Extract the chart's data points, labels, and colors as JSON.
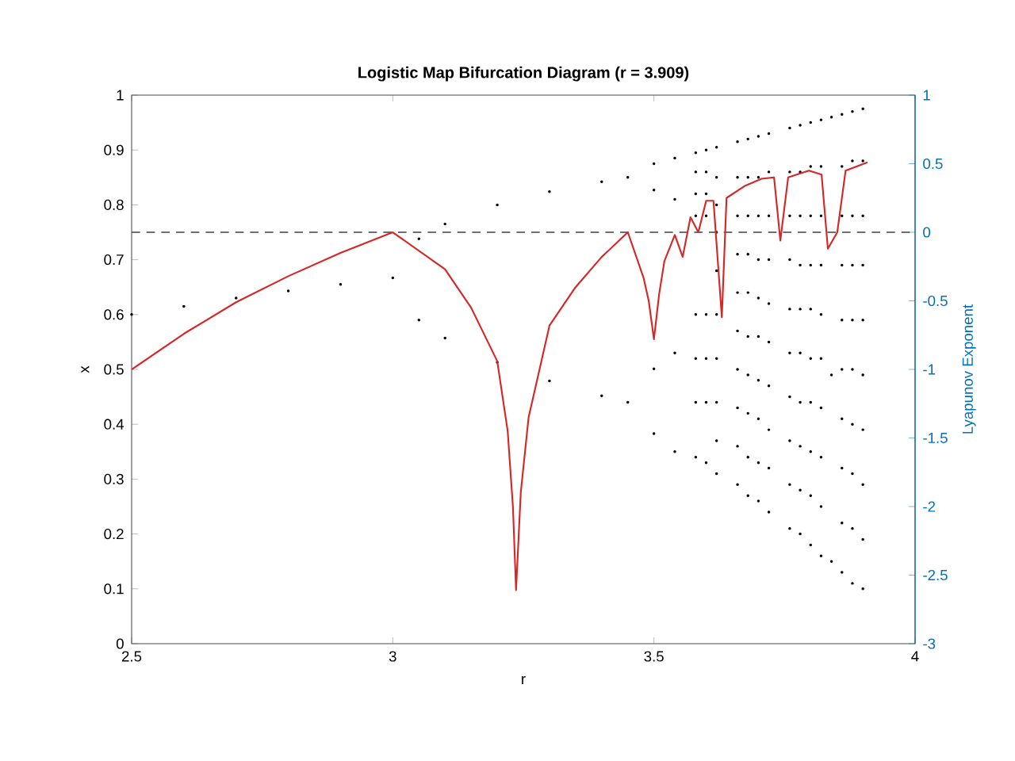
{
  "chart_data": {
    "type": "scatter",
    "title": "Logistic Map Bifurcation Diagram (r = 3.909)",
    "xlabel": "r",
    "ylabel": "x",
    "y2label": "Lyapunov Exponent",
    "xlim": [
      2.5,
      4
    ],
    "xticks": [
      2.5,
      3,
      3.5,
      4
    ],
    "ylim": [
      0,
      1
    ],
    "yticks": [
      0,
      0.1,
      0.2,
      0.3,
      0.4,
      0.5,
      0.6,
      0.7,
      0.8,
      0.9,
      1
    ],
    "y2lim": [
      -3,
      1
    ],
    "y2ticks": [
      -3,
      -2.5,
      -2,
      -1.5,
      -1,
      -0.5,
      0,
      0.5,
      1
    ],
    "ref_lines": [
      {
        "axis": "y2",
        "value": 0,
        "color": "#404040",
        "line_style": "dashed"
      }
    ],
    "series": [
      {
        "color": "#000000",
        "marker": "circle",
        "x": [
          2.5,
          2.6,
          2.7,
          2.8,
          2.9,
          3.0,
          3.05,
          3.05,
          3.1,
          3.1,
          3.2,
          3.2,
          3.3,
          3.3,
          3.4,
          3.4,
          3.45,
          3.45,
          3.5,
          3.5,
          3.5,
          3.5,
          3.54,
          3.54,
          3.54,
          3.54,
          3.58,
          3.58,
          3.58,
          3.58,
          3.58,
          3.58,
          3.58,
          3.58,
          3.6,
          3.6,
          3.6,
          3.6,
          3.6,
          3.6,
          3.6,
          3.6,
          3.62,
          3.62,
          3.62,
          3.62,
          3.62,
          3.62,
          3.62,
          3.62,
          3.62,
          3.62,
          3.66,
          3.66,
          3.66,
          3.66,
          3.66,
          3.66,
          3.66,
          3.66,
          3.66,
          3.66,
          3.68,
          3.68,
          3.68,
          3.68,
          3.68,
          3.68,
          3.68,
          3.68,
          3.68,
          3.68,
          3.7,
          3.7,
          3.7,
          3.7,
          3.7,
          3.7,
          3.7,
          3.7,
          3.7,
          3.7,
          3.72,
          3.72,
          3.72,
          3.72,
          3.72,
          3.72,
          3.72,
          3.72,
          3.72,
          3.72,
          3.76,
          3.76,
          3.76,
          3.76,
          3.76,
          3.76,
          3.76,
          3.76,
          3.76,
          3.76,
          3.78,
          3.78,
          3.78,
          3.78,
          3.78,
          3.78,
          3.78,
          3.78,
          3.78,
          3.78,
          3.8,
          3.8,
          3.8,
          3.8,
          3.8,
          3.8,
          3.8,
          3.8,
          3.8,
          3.8,
          3.82,
          3.82,
          3.82,
          3.82,
          3.82,
          3.82,
          3.82,
          3.82,
          3.82,
          3.82,
          3.84,
          3.84,
          3.84,
          3.86,
          3.86,
          3.86,
          3.86,
          3.86,
          3.86,
          3.86,
          3.86,
          3.86,
          3.86,
          3.88,
          3.88,
          3.88,
          3.88,
          3.88,
          3.88,
          3.88,
          3.88,
          3.88,
          3.88,
          3.9,
          3.9,
          3.9,
          3.9,
          3.9,
          3.9,
          3.9,
          3.9,
          3.9,
          3.9
        ],
        "values": [
          0.6,
          0.615,
          0.63,
          0.643,
          0.655,
          0.667,
          0.738,
          0.59,
          0.765,
          0.557,
          0.8,
          0.513,
          0.824,
          0.479,
          0.842,
          0.452,
          0.85,
          0.44,
          0.875,
          0.827,
          0.501,
          0.383,
          0.885,
          0.81,
          0.53,
          0.35,
          0.895,
          0.86,
          0.82,
          0.78,
          0.6,
          0.52,
          0.44,
          0.34,
          0.9,
          0.86,
          0.82,
          0.78,
          0.6,
          0.52,
          0.44,
          0.33,
          0.905,
          0.85,
          0.8,
          0.75,
          0.68,
          0.6,
          0.52,
          0.44,
          0.37,
          0.31,
          0.915,
          0.85,
          0.78,
          0.71,
          0.64,
          0.57,
          0.5,
          0.43,
          0.36,
          0.29,
          0.92,
          0.85,
          0.78,
          0.71,
          0.64,
          0.56,
          0.49,
          0.42,
          0.34,
          0.27,
          0.925,
          0.85,
          0.78,
          0.7,
          0.63,
          0.56,
          0.48,
          0.41,
          0.33,
          0.26,
          0.93,
          0.86,
          0.78,
          0.7,
          0.62,
          0.55,
          0.47,
          0.39,
          0.32,
          0.24,
          0.94,
          0.86,
          0.78,
          0.7,
          0.61,
          0.53,
          0.45,
          0.37,
          0.29,
          0.21,
          0.945,
          0.86,
          0.78,
          0.69,
          0.61,
          0.53,
          0.44,
          0.36,
          0.28,
          0.2,
          0.95,
          0.87,
          0.78,
          0.69,
          0.61,
          0.52,
          0.44,
          0.35,
          0.27,
          0.18,
          0.955,
          0.87,
          0.78,
          0.69,
          0.6,
          0.52,
          0.43,
          0.34,
          0.25,
          0.16,
          0.96,
          0.49,
          0.15,
          0.965,
          0.87,
          0.78,
          0.69,
          0.59,
          0.5,
          0.41,
          0.32,
          0.22,
          0.13,
          0.97,
          0.88,
          0.78,
          0.69,
          0.59,
          0.5,
          0.4,
          0.31,
          0.21,
          0.11,
          0.975,
          0.88,
          0.78,
          0.69,
          0.59,
          0.49,
          0.39,
          0.29,
          0.19,
          0.1
        ]
      },
      {
        "type": "line",
        "axis": "y2",
        "color": "#d62728",
        "marker": "none",
        "line_style": "solid",
        "x": [
          2.5,
          2.6,
          2.7,
          2.8,
          2.9,
          3.0,
          3.1,
          3.15,
          3.2,
          3.22,
          3.23,
          3.236,
          3.245,
          3.26,
          3.3,
          3.35,
          3.4,
          3.45,
          3.48,
          3.49,
          3.5,
          3.51,
          3.52,
          3.54,
          3.555,
          3.57,
          3.585,
          3.6,
          3.614,
          3.63,
          3.639,
          3.675,
          3.706,
          3.73,
          3.742,
          3.757,
          3.797,
          3.821,
          3.833,
          3.851,
          3.867,
          3.909
        ],
        "values": [
          -1.0,
          -0.74,
          -0.51,
          -0.32,
          -0.15,
          0,
          -0.27,
          -0.55,
          -0.94,
          -1.45,
          -2.0,
          -2.61,
          -1.9,
          -1.35,
          -0.68,
          -0.4,
          -0.18,
          0,
          -0.33,
          -0.5,
          -0.78,
          -0.45,
          -0.21,
          -0.02,
          -0.18,
          0.11,
          0,
          0.23,
          0.23,
          -0.62,
          0.25,
          0.34,
          0.39,
          0.4,
          -0.06,
          0.4,
          0.45,
          0.42,
          -0.12,
          0,
          0.45,
          0.51
        ]
      }
    ]
  }
}
